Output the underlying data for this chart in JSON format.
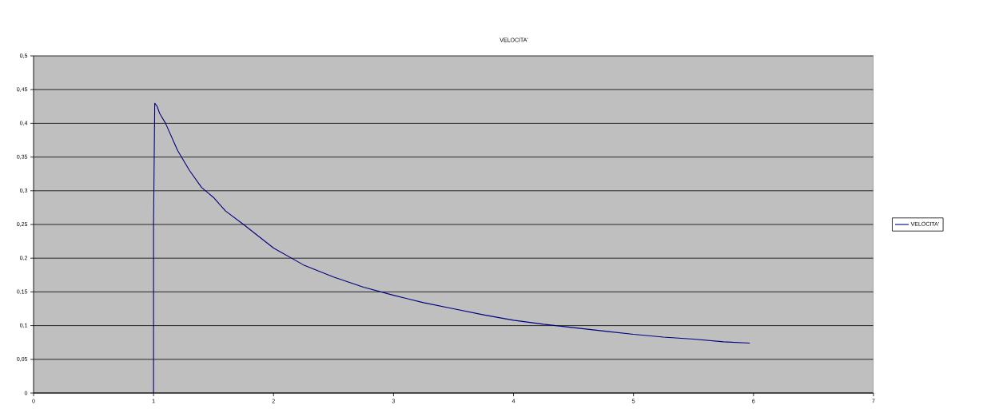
{
  "chart_data": {
    "type": "line",
    "title": "VELOCITA'",
    "series": [
      {
        "name": "VELOCITA'",
        "color": "#000080",
        "x": [
          1,
          1,
          1.01,
          1.03,
          1.05,
          1.1,
          1.2,
          1.3,
          1.4,
          1.5,
          1.6,
          1.75,
          2,
          2.25,
          2.5,
          2.75,
          3,
          3.25,
          3.5,
          3.75,
          4,
          4.25,
          4.5,
          4.75,
          5,
          5.25,
          5.5,
          5.75,
          5.97
        ],
        "values": [
          0,
          0.25,
          0.43,
          0.425,
          0.415,
          0.4,
          0.36,
          0.33,
          0.305,
          0.29,
          0.27,
          0.25,
          0.215,
          0.19,
          0.172,
          0.157,
          0.145,
          0.134,
          0.125,
          0.116,
          0.108,
          0.102,
          0.097,
          0.092,
          0.087,
          0.083,
          0.08,
          0.076,
          0.074
        ]
      }
    ],
    "xlim": [
      0,
      7
    ],
    "xticks": [
      0,
      1,
      2,
      3,
      4,
      5,
      6,
      7
    ],
    "ylim": [
      0,
      0.5
    ],
    "yticks": [
      0,
      {
        "value": 0.05,
        "label": "0,05"
      },
      {
        "value": 0.1,
        "label": "0,1"
      },
      {
        "value": 0.15,
        "label": "0,15"
      },
      {
        "value": 0.2,
        "label": "0,2"
      },
      {
        "value": 0.25,
        "label": "0,25"
      },
      {
        "value": 0.3,
        "label": "0,3"
      },
      {
        "value": 0.35,
        "label": "0,35"
      },
      {
        "value": 0.4,
        "label": "0,4"
      },
      {
        "value": 0.45,
        "label": "0,45"
      },
      {
        "value": 0.5,
        "label": "0,5"
      }
    ],
    "grid": "y",
    "legend": "right",
    "marker": "none",
    "line_style": "solid"
  }
}
